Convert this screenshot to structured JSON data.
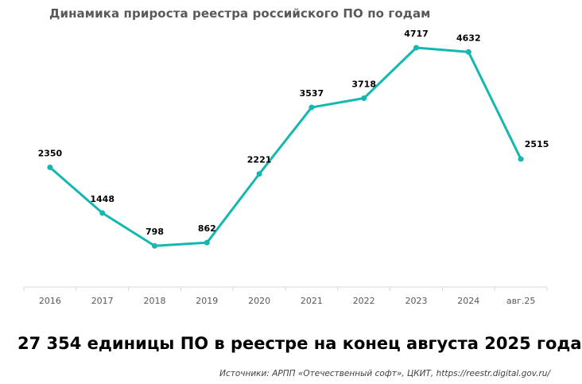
{
  "chart_data": {
    "type": "line",
    "title": "Динамика прироста реестра российского ПО по годам",
    "categories": [
      "2016",
      "2017",
      "2018",
      "2019",
      "2020",
      "2021",
      "2022",
      "2023",
      "2024",
      "авг.25"
    ],
    "series": [
      {
        "values": [
          2350,
          1448,
          798,
          862,
          2221,
          3537,
          3718,
          4717,
          4632,
          2515
        ],
        "color": "#13B8B0"
      }
    ],
    "data_labels": [
      "2350",
      "1448",
      "798",
      "862",
      "2221",
      "3537",
      "3718",
      "4717",
      "4632",
      "2515"
    ],
    "xlabel": "",
    "ylabel": "",
    "ylim": [
      0,
      4717
    ],
    "grid": false,
    "axis_color": "#D9D9D9"
  },
  "headline": "27 354 единицы ПО в реестре на конец августа 2025 года",
  "source": "Источники: АРПП «Отечественный софт», ЦКИТ, https://reestr.digital.gov.ru/"
}
